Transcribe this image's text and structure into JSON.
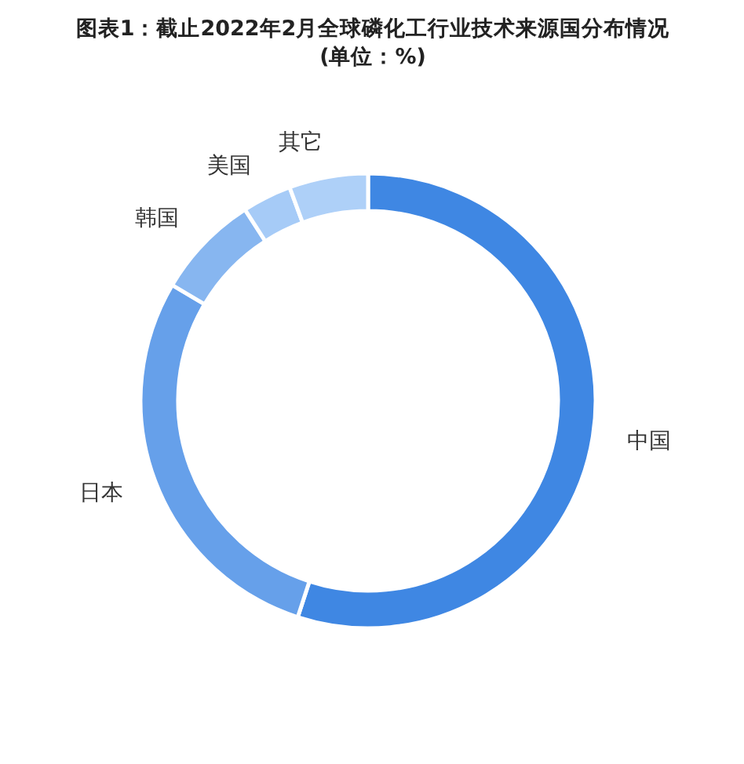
{
  "chart_data": {
    "type": "donut",
    "title": "图表1：截止2022年2月全球磷化工行业技术来源国分布情况\n(单位：%)",
    "categories": [
      "中国",
      "日本",
      "韩国",
      "美国",
      "其它"
    ],
    "values": [
      55,
      28.5,
      7.4,
      3.5,
      5.6
    ],
    "colors": [
      "#3f87e3",
      "#66a0ea",
      "#87b6f0",
      "#a6cbf7",
      "#aed0f8"
    ]
  }
}
